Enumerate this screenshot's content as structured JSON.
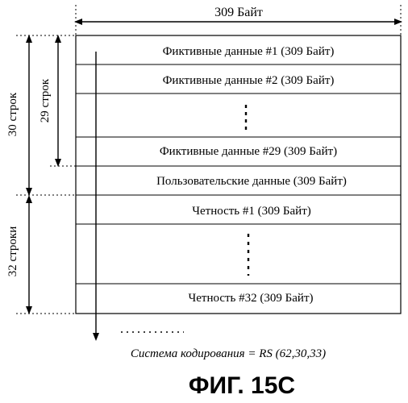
{
  "top_label": "309 Байт",
  "rows": [
    "Фиктивные данные #1 (309 Байт)",
    "Фиктивные данные #2 (309 Байт)",
    "",
    "Фиктивные данные #29 (309 Байт)",
    "Пользовательские данные (309 Байт)",
    "Четность #1 (309 Байт)",
    "",
    "Четность #32 (309 Байт)"
  ],
  "side_labels": {
    "rows_30": "30 строк",
    "rows_29": "29 строк",
    "rows_32": "32 строки"
  },
  "coding_scheme": "Система кодирования = RS (62,30,33)",
  "figure_caption": "ФИГ. 15С"
}
